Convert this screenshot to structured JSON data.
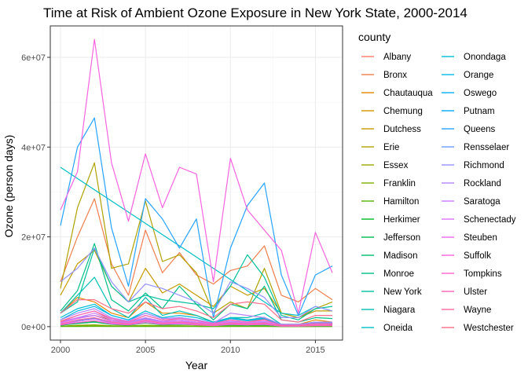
{
  "chart_data": {
    "type": "line",
    "title": "Time at Risk of Ambient Ozone Exposure in New York State, 2000-2014",
    "xlabel": "Year",
    "ylabel": "Ozone (person days)",
    "xlim": [
      1999.4,
      2016.6
    ],
    "ylim": [
      -3000000,
      67000000
    ],
    "x_ticks": [
      2000,
      2005,
      2010,
      2015
    ],
    "y_ticks": [
      0,
      20000000,
      40000000,
      60000000
    ],
    "y_tick_labels": [
      "0e+00",
      "2e+07",
      "4e+07",
      "6e+07"
    ],
    "grid": true,
    "legend": {
      "title": "county",
      "position": "right",
      "columns": 2
    },
    "x": [
      2000,
      2001,
      2002,
      2003,
      2004,
      2005,
      2006,
      2007,
      2008,
      2009,
      2010,
      2011,
      2012,
      2013,
      2014,
      2015,
      2016
    ],
    "series": [
      {
        "name": "Albany",
        "color": "#F8766D",
        "values": [
          1200000,
          2500000,
          3500000,
          1500000,
          1000000,
          2500000,
          1500000,
          1500000,
          1000000,
          700000,
          1500000,
          1000000,
          1700000,
          300000,
          400000,
          700000,
          600000
        ]
      },
      {
        "name": "Bronx",
        "color": "#F07E4C",
        "values": [
          10000000,
          20000000,
          28500000,
          14000000,
          7000000,
          21500000,
          12000000,
          16500000,
          11500000,
          9500000,
          12500000,
          13500000,
          18000000,
          7000000,
          5500000,
          8500000,
          6000000
        ]
      },
      {
        "name": "Chautauqua",
        "color": "#E58700",
        "values": [
          3000000,
          6500000,
          5500000,
          3000000,
          2000000,
          5500000,
          3000000,
          3000000,
          2500000,
          1000000,
          2000000,
          1500000,
          2000000,
          500000,
          500000,
          1500000,
          1000000
        ]
      },
      {
        "name": "Chemung",
        "color": "#D69100",
        "values": [
          1000000,
          2000000,
          2500000,
          1500000,
          800000,
          1800000,
          1200000,
          1000000,
          900000,
          500000,
          1000000,
          700000,
          900000,
          200000,
          200000,
          500000,
          400000
        ]
      },
      {
        "name": "Dutchess",
        "color": "#C49A00",
        "values": [
          7000000,
          14000000,
          17000000,
          9000000,
          5500000,
          13000000,
          7500000,
          9500000,
          7000000,
          4500000,
          9000000,
          7000000,
          8500000,
          3000000,
          2000000,
          3500000,
          3500000
        ]
      },
      {
        "name": "Erie",
        "color": "#B0A100",
        "values": [
          8500000,
          26500000,
          36500000,
          13000000,
          14000000,
          28000000,
          14500000,
          16000000,
          12000000,
          3000000,
          5500000,
          4000000,
          13000000,
          3000000,
          2000000,
          4000000,
          5500000
        ]
      },
      {
        "name": "Essex",
        "color": "#9AA800",
        "values": [
          100000,
          300000,
          400000,
          200000,
          150000,
          300000,
          200000,
          200000,
          150000,
          100000,
          200000,
          150000,
          200000,
          50000,
          50000,
          100000,
          100000
        ]
      },
      {
        "name": "Franklin",
        "color": "#7EAE00",
        "values": [
          100000,
          200000,
          300000,
          150000,
          100000,
          250000,
          150000,
          150000,
          100000,
          80000,
          150000,
          100000,
          150000,
          40000,
          40000,
          80000,
          80000
        ]
      },
      {
        "name": "Hamilton",
        "color": "#55B300",
        "values": [
          20000,
          50000,
          60000,
          30000,
          20000,
          50000,
          30000,
          30000,
          20000,
          15000,
          30000,
          20000,
          30000,
          10000,
          10000,
          15000,
          15000
        ]
      },
      {
        "name": "Herkimer",
        "color": "#00B824",
        "values": [
          300000,
          800000,
          1200000,
          600000,
          400000,
          900000,
          500000,
          600000,
          400000,
          250000,
          500000,
          400000,
          500000,
          100000,
          100000,
          200000,
          200000
        ]
      },
      {
        "name": "Jefferson",
        "color": "#00BB4E",
        "values": [
          500000,
          1200000,
          1800000,
          900000,
          500000,
          1300000,
          700000,
          800000,
          600000,
          300000,
          700000,
          500000,
          700000,
          150000,
          150000,
          300000,
          300000
        ]
      },
      {
        "name": "Madison",
        "color": "#00BD6D",
        "values": [
          300000,
          700000,
          1000000,
          500000,
          300000,
          800000,
          400000,
          500000,
          400000,
          200000,
          400000,
          300000,
          400000,
          100000,
          100000,
          200000,
          200000
        ]
      },
      {
        "name": "Monroe",
        "color": "#00BF87",
        "values": [
          3500000,
          8000000,
          18500000,
          6000000,
          3500000,
          7500000,
          4000000,
          9000000,
          5000000,
          1500000,
          5000000,
          4000000,
          9000000,
          1500000,
          1000000,
          2000000,
          1800000
        ]
      },
      {
        "name": "New York",
        "color": "#00C09E",
        "values": [
          3000000,
          5500000,
          17500000,
          9000000,
          5500000,
          7000000,
          6000000,
          5500000,
          5000000,
          4000000,
          9000000,
          16000000,
          11000000,
          2500000,
          1500000,
          4000000,
          4500000
        ]
      },
      {
        "name": "Niagara",
        "color": "#00C0B3",
        "values": [
          3000000,
          7000000,
          11000000,
          4000000,
          2000000,
          6500000,
          2500000,
          3500000,
          2500000,
          1000000,
          2000000,
          2000000,
          3000000,
          500000,
          500000,
          1000000,
          1000000
        ]
      },
      {
        "name": "Oneida",
        "color": "#00BFC6",
        "values": [
          35500000,
          33000000,
          30500000,
          28000000,
          25500000,
          23000000,
          20500000,
          18000000,
          15500000,
          13000000,
          10500000,
          8000000,
          5500000,
          3000000,
          2500000,
          4500000,
          3500000
        ]
      },
      {
        "name": "Onondaga",
        "color": "#00BCD6",
        "values": [
          2000000,
          4000000,
          5000000,
          2500000,
          1500000,
          3500000,
          2000000,
          2500000,
          2000000,
          1000000,
          2000000,
          1500000,
          2000000,
          500000,
          500000,
          1000000,
          1000000
        ]
      },
      {
        "name": "Orange",
        "color": "#00B8E5",
        "values": [
          1500000,
          3500000,
          4500000,
          2500000,
          1500000,
          3000000,
          1800000,
          2000000,
          1500000,
          800000,
          1800000,
          1300000,
          1800000,
          400000,
          400000,
          800000,
          800000
        ]
      },
      {
        "name": "Oswego",
        "color": "#00B2F2",
        "values": [
          500000,
          1200000,
          1700000,
          800000,
          500000,
          1200000,
          700000,
          800000,
          600000,
          300000,
          700000,
          500000,
          700000,
          150000,
          150000,
          300000,
          300000
        ]
      },
      {
        "name": "Putnam",
        "color": "#00ABFD",
        "values": [
          500000,
          1300000,
          1800000,
          900000,
          500000,
          1300000,
          800000,
          900000,
          600000,
          400000,
          700000,
          500000,
          700000,
          150000,
          150000,
          300000,
          300000
        ]
      },
      {
        "name": "Queens",
        "color": "#26A3FF",
        "values": [
          22500000,
          40000000,
          46500000,
          22000000,
          9000000,
          28500000,
          24000000,
          17500000,
          24000000,
          2000000,
          17500000,
          27000000,
          32000000,
          11500000,
          2500000,
          11500000,
          13500000
        ]
      },
      {
        "name": "Rensselaer",
        "color": "#6C9AFF",
        "values": [
          800000,
          2000000,
          2500000,
          1200000,
          800000,
          1800000,
          1000000,
          1200000,
          900000,
          500000,
          1000000,
          700000,
          1000000,
          200000,
          200000,
          500000,
          500000
        ]
      },
      {
        "name": "Richmond",
        "color": "#9590FF",
        "values": [
          10000000,
          13000000,
          17500000,
          10000000,
          5500000,
          9500000,
          8500000,
          7000000,
          5500000,
          3000000,
          10000000,
          8500000,
          6500000,
          2000000,
          2000000,
          4500000,
          3500000
        ]
      },
      {
        "name": "Rockland",
        "color": "#B385FF",
        "values": [
          1500000,
          3000000,
          4000000,
          2000000,
          1200000,
          3000000,
          1800000,
          2000000,
          1500000,
          800000,
          3000000,
          2500000,
          2000000,
          500000,
          500000,
          1000000,
          1000000
        ]
      },
      {
        "name": "Saratoga",
        "color": "#CA7BFF",
        "values": [
          1000000,
          2000000,
          3000000,
          1500000,
          1000000,
          2000000,
          1200000,
          1500000,
          1000000,
          600000,
          1200000,
          900000,
          1200000,
          300000,
          300000,
          600000,
          600000
        ]
      },
      {
        "name": "Schenectady",
        "color": "#DE71F9",
        "values": [
          800000,
          1800000,
          2500000,
          1200000,
          800000,
          1600000,
          1000000,
          1200000,
          900000,
          500000,
          1000000,
          700000,
          1000000,
          200000,
          200000,
          500000,
          500000
        ]
      },
      {
        "name": "Steuben",
        "color": "#EC69EF",
        "values": [
          500000,
          1200000,
          1700000,
          800000,
          500000,
          1200000,
          700000,
          800000,
          600000,
          300000,
          700000,
          500000,
          700000,
          150000,
          150000,
          300000,
          300000
        ]
      },
      {
        "name": "Suffolk",
        "color": "#F763E0",
        "values": [
          26000000,
          34500000,
          64000000,
          36500000,
          23500000,
          38500000,
          26500000,
          35500000,
          34000000,
          10000000,
          37500000,
          26000000,
          21500000,
          17000000,
          3000000,
          21000000,
          12000000
        ]
      },
      {
        "name": "Tompkins",
        "color": "#FE61CF",
        "values": [
          400000,
          900000,
          1300000,
          600000,
          400000,
          900000,
          500000,
          600000,
          400000,
          200000,
          500000,
          400000,
          500000,
          100000,
          100000,
          200000,
          200000
        ]
      },
      {
        "name": "Ulster",
        "color": "#FF63BA",
        "values": [
          1000000,
          2500000,
          3500000,
          1800000,
          1000000,
          2500000,
          1500000,
          1800000,
          1300000,
          700000,
          1500000,
          1000000,
          1500000,
          300000,
          300000,
          700000,
          700000
        ]
      },
      {
        "name": "Wayne",
        "color": "#FF68A3",
        "values": [
          600000,
          1500000,
          2000000,
          1000000,
          600000,
          1400000,
          800000,
          1000000,
          700000,
          400000,
          800000,
          600000,
          800000,
          200000,
          200000,
          400000,
          400000
        ]
      },
      {
        "name": "Westchester",
        "color": "#FB6F89",
        "values": [
          3000000,
          6000000,
          6000000,
          4000000,
          3000000,
          5500000,
          4000000,
          4500000,
          3500000,
          2000000,
          5000000,
          5500000,
          5000000,
          1500000,
          1000000,
          2500000,
          2500000
        ]
      }
    ]
  }
}
